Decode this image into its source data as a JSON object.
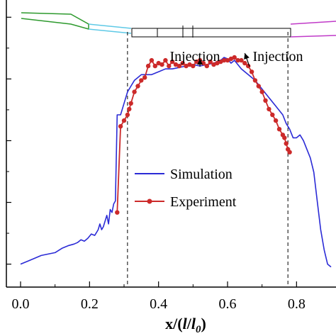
{
  "chart_data": {
    "type": "line",
    "xlim": [
      -0.03,
      0.9
    ],
    "ylim": [
      0,
      1
    ],
    "x_ticks": [
      {
        "value": 0.0,
        "label": "0.0"
      },
      {
        "value": 0.2,
        "label": "0.2"
      },
      {
        "value": 0.4,
        "label": "0.4"
      },
      {
        "value": 0.6,
        "label": "0.6"
      },
      {
        "value": 0.8,
        "label": "0.8"
      }
    ],
    "x_minor_ticks": [
      0.1,
      0.3,
      0.5,
      0.7
    ],
    "y_tick_values": [
      0.08,
      0.295,
      0.51,
      0.725,
      0.94
    ],
    "xlabel": "x/(l/l0)",
    "xlabel_main": "x/(",
    "xlabel_l": "l",
    "xlabel_slash": "/",
    "xlabel_l0": "l",
    "xlabel_sub": "0",
    "xlabel_close": ")",
    "ylabel": "",
    "grid": false,
    "legend_position": "center-right",
    "vlines": [
      0.31,
      0.775
    ],
    "series": [
      {
        "name": "Simulation",
        "color": "#2b2bd6",
        "marker": "none",
        "x": [
          0.0,
          0.02,
          0.04,
          0.06,
          0.08,
          0.1,
          0.12,
          0.14,
          0.155,
          0.165,
          0.175,
          0.185,
          0.195,
          0.205,
          0.215,
          0.22,
          0.225,
          0.23,
          0.235,
          0.24,
          0.25,
          0.255,
          0.26,
          0.265,
          0.27,
          0.275,
          0.28,
          0.29,
          0.3,
          0.31,
          0.32,
          0.33,
          0.34,
          0.35,
          0.36,
          0.38,
          0.4,
          0.42,
          0.44,
          0.46,
          0.48,
          0.5,
          0.52,
          0.54,
          0.56,
          0.58,
          0.59,
          0.6,
          0.61,
          0.62,
          0.64,
          0.66,
          0.68,
          0.7,
          0.72,
          0.74,
          0.76,
          0.77,
          0.78,
          0.79,
          0.8,
          0.81,
          0.82,
          0.83,
          0.84,
          0.85,
          0.86,
          0.87,
          0.88,
          0.89,
          0.9
        ],
        "y": [
          0.08,
          0.09,
          0.1,
          0.11,
          0.115,
          0.12,
          0.135,
          0.145,
          0.15,
          0.155,
          0.165,
          0.16,
          0.17,
          0.185,
          0.18,
          0.19,
          0.2,
          0.22,
          0.2,
          0.21,
          0.25,
          0.22,
          0.27,
          0.26,
          0.29,
          0.3,
          0.6,
          0.6,
          0.64,
          0.68,
          0.7,
          0.72,
          0.73,
          0.74,
          0.74,
          0.74,
          0.75,
          0.76,
          0.76,
          0.765,
          0.77,
          0.775,
          0.77,
          0.775,
          0.78,
          0.79,
          0.8,
          0.795,
          0.78,
          0.79,
          0.76,
          0.74,
          0.72,
          0.69,
          0.66,
          0.63,
          0.6,
          0.57,
          0.55,
          0.52,
          0.52,
          0.53,
          0.51,
          0.48,
          0.45,
          0.4,
          0.3,
          0.2,
          0.13,
          0.08,
          0.07
        ]
      },
      {
        "name": "Experiment",
        "color": "#cc2a2a",
        "marker": "circle",
        "x": [
          0.28,
          0.29,
          0.3,
          0.31,
          0.315,
          0.32,
          0.33,
          0.34,
          0.35,
          0.36,
          0.37,
          0.38,
          0.39,
          0.4,
          0.41,
          0.42,
          0.43,
          0.44,
          0.45,
          0.46,
          0.47,
          0.48,
          0.49,
          0.5,
          0.51,
          0.52,
          0.53,
          0.54,
          0.55,
          0.56,
          0.57,
          0.58,
          0.59,
          0.6,
          0.61,
          0.62,
          0.63,
          0.64,
          0.65,
          0.66,
          0.67,
          0.68,
          0.69,
          0.7,
          0.71,
          0.72,
          0.73,
          0.74,
          0.75,
          0.76,
          0.765,
          0.77,
          0.775,
          0.78
        ],
        "y": [
          0.26,
          0.56,
          0.58,
          0.6,
          0.62,
          0.64,
          0.68,
          0.7,
          0.72,
          0.73,
          0.77,
          0.79,
          0.77,
          0.78,
          0.775,
          0.79,
          0.77,
          0.785,
          0.775,
          0.77,
          0.78,
          0.77,
          0.775,
          0.77,
          0.785,
          0.79,
          0.78,
          0.77,
          0.785,
          0.775,
          0.78,
          0.785,
          0.79,
          0.79,
          0.795,
          0.8,
          0.79,
          0.79,
          0.78,
          0.77,
          0.75,
          0.72,
          0.7,
          0.68,
          0.65,
          0.62,
          0.6,
          0.58,
          0.55,
          0.53,
          0.52,
          0.5,
          0.48,
          0.47
        ]
      }
    ],
    "annotations": [
      {
        "text": "Injection",
        "x": 0.52,
        "y": 0.78
      },
      {
        "text": "Injection",
        "x": 0.65,
        "y": 0.8
      }
    ]
  },
  "legend": {
    "simulation": "Simulation",
    "experiment": "Experiment"
  },
  "geometry_colors": {
    "inlet": "#2e9a2e",
    "converging": "#5ec9e6",
    "combustor": "#000000",
    "outlet": "#c03ac8"
  }
}
